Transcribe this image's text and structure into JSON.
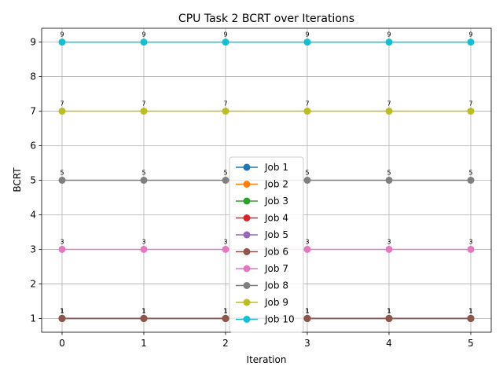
{
  "chart_data": {
    "type": "line",
    "title": "CPU Task 2 BCRT over Iterations",
    "xlabel": "Iteration",
    "ylabel": "BCRT",
    "x": [
      0,
      1,
      2,
      3,
      4,
      5
    ],
    "xlim": [
      -0.25,
      5.25
    ],
    "ylim": [
      0.6,
      9.4
    ],
    "xticks": [
      0,
      1,
      2,
      3,
      4,
      5
    ],
    "yticks": [
      1,
      2,
      3,
      4,
      5,
      6,
      7,
      8,
      9
    ],
    "grid": true,
    "legend_position": "center",
    "marker": "circle",
    "series": [
      {
        "name": "Job 1",
        "color": "#1f77b4",
        "values": [
          1,
          1,
          1,
          1,
          1,
          1
        ]
      },
      {
        "name": "Job 2",
        "color": "#ff7f0e",
        "values": [
          1,
          1,
          1,
          1,
          1,
          1
        ]
      },
      {
        "name": "Job 3",
        "color": "#2ca02c",
        "values": [
          1,
          1,
          1,
          1,
          1,
          1
        ]
      },
      {
        "name": "Job 4",
        "color": "#d62728",
        "values": [
          1,
          1,
          1,
          1,
          1,
          1
        ]
      },
      {
        "name": "Job 5",
        "color": "#9467bd",
        "values": [
          1,
          1,
          1,
          1,
          1,
          1
        ]
      },
      {
        "name": "Job 6",
        "color": "#8c564b",
        "values": [
          1,
          1,
          1,
          1,
          1,
          1
        ]
      },
      {
        "name": "Job 7",
        "color": "#e377c2",
        "values": [
          3,
          3,
          3,
          3,
          3,
          3
        ]
      },
      {
        "name": "Job 8",
        "color": "#7f7f7f",
        "values": [
          5,
          5,
          5,
          5,
          5,
          5
        ]
      },
      {
        "name": "Job 9",
        "color": "#bcbd22",
        "values": [
          7,
          7,
          7,
          7,
          7,
          7
        ]
      },
      {
        "name": "Job 10",
        "color": "#17becf",
        "values": [
          9,
          9,
          9,
          9,
          9,
          9
        ]
      }
    ]
  }
}
